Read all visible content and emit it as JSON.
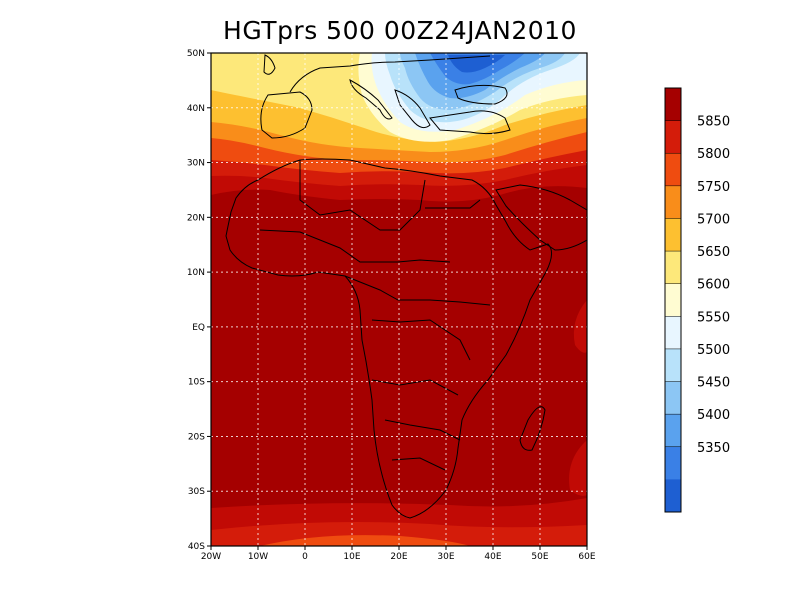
{
  "title": "HGTprs 500 00Z24JAN2010",
  "map": {
    "lon_range": [
      -20,
      60
    ],
    "lat_range": [
      -40,
      50
    ],
    "lat_ticks": [
      {
        "value": 50,
        "label": "50N"
      },
      {
        "value": 40,
        "label": "40N"
      },
      {
        "value": 30,
        "label": "30N"
      },
      {
        "value": 20,
        "label": "20N"
      },
      {
        "value": 10,
        "label": "10N"
      },
      {
        "value": 0,
        "label": "EQ"
      },
      {
        "value": -10,
        "label": "10S"
      },
      {
        "value": -20,
        "label": "20S"
      },
      {
        "value": -30,
        "label": "30S"
      },
      {
        "value": -40,
        "label": "40S"
      }
    ],
    "lon_ticks": [
      {
        "value": -20,
        "label": "20W"
      },
      {
        "value": -10,
        "label": "10W"
      },
      {
        "value": 0,
        "label": "0"
      },
      {
        "value": 10,
        "label": "10E"
      },
      {
        "value": 20,
        "label": "20E"
      },
      {
        "value": 30,
        "label": "30E"
      },
      {
        "value": 40,
        "label": "40E"
      },
      {
        "value": 50,
        "label": "50E"
      },
      {
        "value": 60,
        "label": "60E"
      }
    ],
    "grid": true
  },
  "colorbar": {
    "labels": [
      "5850",
      "5800",
      "5750",
      "5700",
      "5650",
      "5600",
      "5550",
      "5500",
      "5450",
      "5400",
      "5350"
    ],
    "colors": [
      "#a50000",
      "#d41c0a",
      "#ef4c10",
      "#f98d1a",
      "#fdc030",
      "#fde87a",
      "#fffcd2",
      "#e8f6ff",
      "#b8e2fa",
      "#8cc6f4",
      "#5aa2ee",
      "#3a80e6",
      "#1e5fd2"
    ]
  }
}
